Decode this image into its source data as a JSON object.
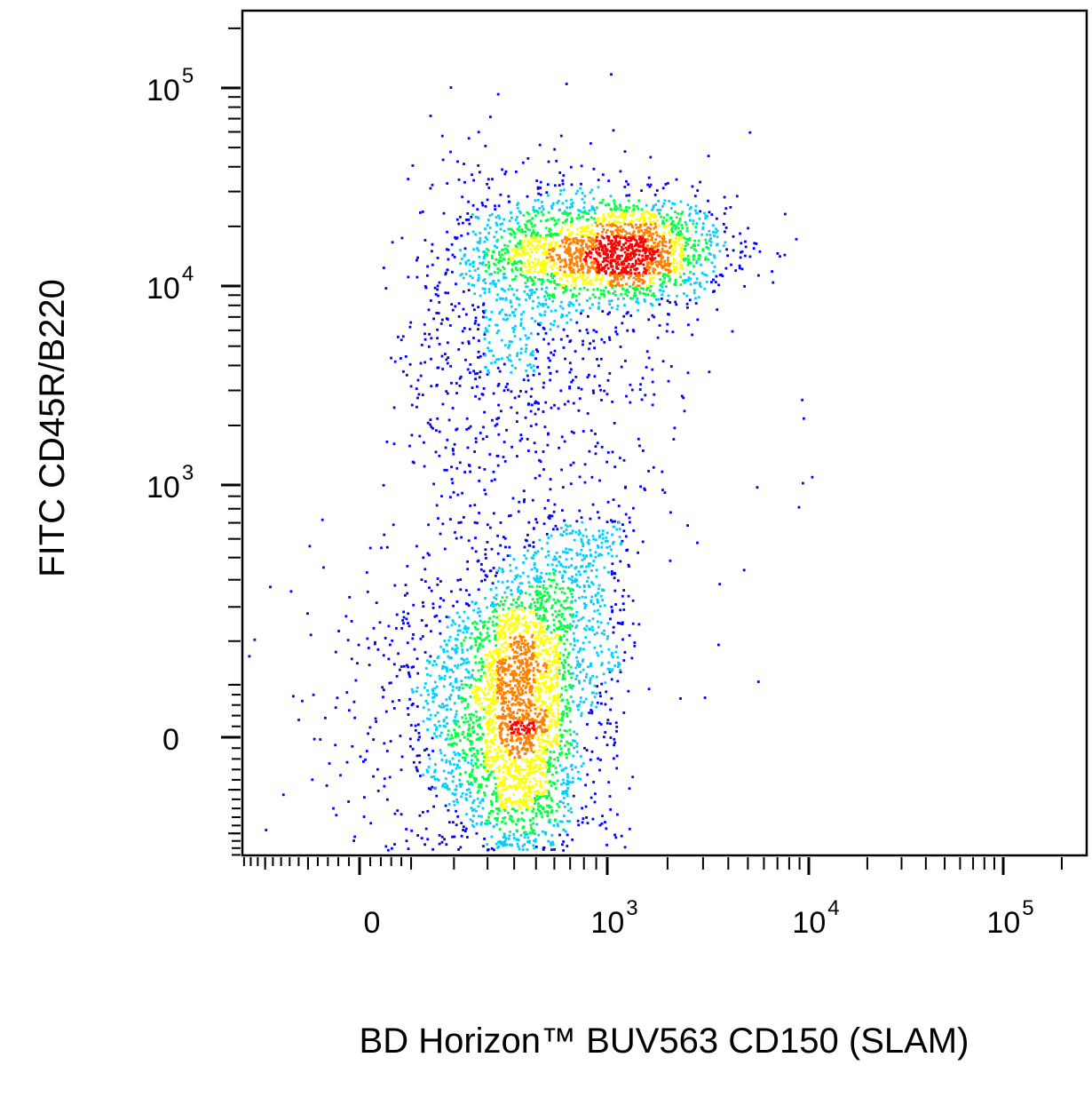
{
  "chart_data": {
    "type": "scatter",
    "subtype": "flow-cytometry-density-dot-plot",
    "xlabel": "BD Horizon™ BUV563 CD150 (SLAM)",
    "ylabel": "FITC CD45R/B220",
    "x_scale": "biexponential",
    "y_scale": "biexponential",
    "xlim": [
      -400,
      200000
    ],
    "ylim": [
      -400,
      200000
    ],
    "x_ticks": [
      {
        "value": 0,
        "base": "0",
        "exp": ""
      },
      {
        "value": 1000,
        "base": "10",
        "exp": "3"
      },
      {
        "value": 10000,
        "base": "10",
        "exp": "4"
      },
      {
        "value": 100000,
        "base": "10",
        "exp": "5"
      }
    ],
    "y_ticks": [
      {
        "value": 0,
        "base": "0",
        "exp": ""
      },
      {
        "value": 1000,
        "base": "10",
        "exp": "3"
      },
      {
        "value": 10000,
        "base": "10",
        "exp": "4"
      },
      {
        "value": 100000,
        "base": "10",
        "exp": "5"
      }
    ],
    "populations": [
      {
        "x_center": 1100,
        "y_center": 15000,
        "x_spread_decades": 0.28,
        "y_spread_decades": 0.14,
        "count": 1900
      },
      {
        "x_center": 420,
        "y_center": 8000,
        "x_spread_decades": 0.3,
        "y_spread_decades": 0.4,
        "count": 750
      },
      {
        "x_center": 380,
        "y_center": 30,
        "x_spread": 160,
        "y_spread": 150,
        "count": 2600
      },
      {
        "x_center": 650,
        "y_center": 250,
        "x_spread": 300,
        "y_spread": 260,
        "count": 900
      },
      {
        "x_center": 500,
        "y_center": 1200,
        "x_spread_decades": 0.4,
        "y_spread_decades": 0.5,
        "count": 300
      }
    ],
    "density_colors": [
      "#0000ff",
      "#00cfff",
      "#00ff40",
      "#ffff00",
      "#ff8000",
      "#ff0000"
    ],
    "grid": false,
    "legend": "none"
  }
}
